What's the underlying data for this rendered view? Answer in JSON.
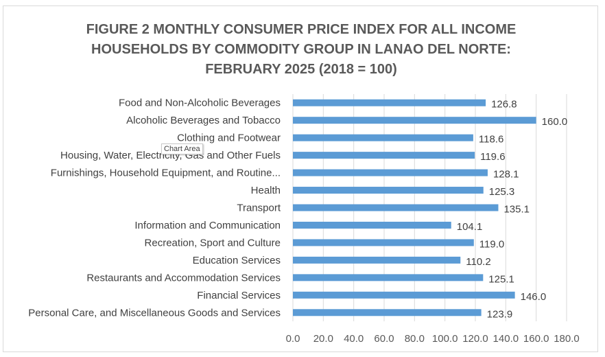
{
  "chart_data": {
    "type": "bar",
    "orientation": "horizontal",
    "title": "FIGURE 2 MONTHLY CONSUMER PRICE INDEX FOR ALL INCOME HOUSEHOLDS BY COMMODITY GROUP IN LANAO DEL NORTE: FEBRUARY 2025 (2018 = 100)",
    "title_lines": [
      "FIGURE 2 MONTHLY CONSUMER PRICE INDEX FOR ALL INCOME",
      "HOUSEHOLDS BY COMMODITY GROUP IN LANAO DEL NORTE:",
      "FEBRUARY 2025 (2018 = 100)"
    ],
    "categories": [
      "Food and Non-Alcoholic Beverages",
      "Alcoholic Beverages and Tobacco",
      "Clothing and Footwear",
      "Housing, Water, Electricity, Gas and Other Fuels",
      "Furnishings, Household Equipment, and Routine...",
      "Health",
      "Transport",
      "Information and Communication",
      "Recreation, Sport and Culture",
      "Education Services",
      "Restaurants and Accommodation Services",
      "Financial Services",
      "Personal Care, and Miscellaneous Goods and Services"
    ],
    "values": [
      126.8,
      160.0,
      118.6,
      119.6,
      128.1,
      125.3,
      135.1,
      104.1,
      119.0,
      110.2,
      125.1,
      146.0,
      123.9
    ],
    "value_labels": [
      "126.8",
      "160.0",
      "118.6",
      "119.6",
      "128.1",
      "125.3",
      "135.1",
      "104.1",
      "119.0",
      "110.2",
      "125.1",
      "146.0",
      "123.9"
    ],
    "xlim": [
      0,
      180
    ],
    "xticks": [
      0,
      20,
      40,
      60,
      80,
      100,
      120,
      140,
      160,
      180
    ],
    "xtick_labels": [
      "0.0",
      "20.0",
      "40.0",
      "60.0",
      "80.0",
      "100.0",
      "120.0",
      "140.0",
      "160.0",
      "180.0"
    ],
    "grid": true,
    "legend": false,
    "bar_color": "#5b9bd5",
    "grid_color": "#d9d9d9"
  },
  "tooltip": {
    "text": "Chart Area"
  }
}
